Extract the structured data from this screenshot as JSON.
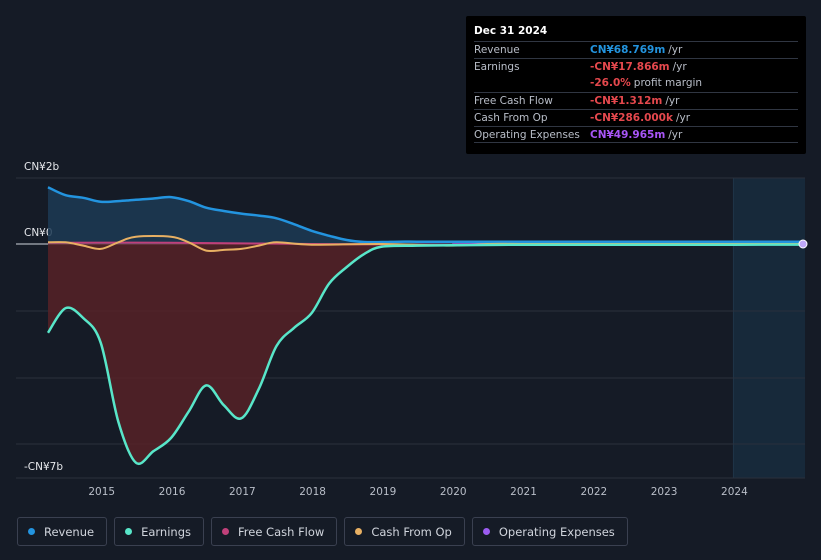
{
  "tooltip": {
    "date": "Dec 31 2024",
    "rows": [
      {
        "label": "Revenue",
        "value": "CN¥68.769m",
        "unit": "/yr",
        "color": "#2394df"
      },
      {
        "label": "Earnings",
        "value": "-CN¥17.866m",
        "unit": "/yr",
        "color": "#e5484d"
      },
      {
        "label": "",
        "value": "-26.0%",
        "unit": "profit margin",
        "color": "#e5484d"
      },
      {
        "label": "Free Cash Flow",
        "value": "-CN¥1.312m",
        "unit": "/yr",
        "color": "#e5484d"
      },
      {
        "label": "Cash From Op",
        "value": "-CN¥286.000k",
        "unit": "/yr",
        "color": "#e5484d"
      },
      {
        "label": "Operating Expenses",
        "value": "CN¥49.965m",
        "unit": "/yr",
        "color": "#a855f7"
      }
    ]
  },
  "legend": [
    {
      "label": "Revenue",
      "color": "#2394df"
    },
    {
      "label": "Earnings",
      "color": "#58e6c9"
    },
    {
      "label": "Free Cash Flow",
      "color": "#c0407a"
    },
    {
      "label": "Cash From Op",
      "color": "#e8b063"
    },
    {
      "label": "Operating Expenses",
      "color": "#9b5cf0"
    }
  ],
  "chart_data": {
    "type": "line",
    "title": "",
    "xlabel": "",
    "ylabel": "",
    "xlim": [
      2014.25,
      2025.0
    ],
    "ylim": [
      -7,
      2
    ],
    "y_tick_labels": [
      {
        "value": 2,
        "label": "CN¥2b"
      },
      {
        "value": 0,
        "label": "CN¥0"
      },
      {
        "value": -7,
        "label": "-CN¥7b"
      }
    ],
    "x_ticks": [
      2015,
      2016,
      2017,
      2018,
      2019,
      2020,
      2021,
      2022,
      2023,
      2024
    ],
    "x_tick_labels": [
      "2015",
      "2016",
      "2017",
      "2018",
      "2019",
      "2020",
      "2021",
      "2022",
      "2023",
      "2024"
    ],
    "highlight_from": 2024.0,
    "series": [
      {
        "name": "Revenue",
        "color": "#2394df",
        "x": [
          2014.25,
          2014.5,
          2014.75,
          2015.0,
          2015.25,
          2015.5,
          2015.75,
          2016.0,
          2016.25,
          2016.5,
          2016.75,
          2017.0,
          2017.25,
          2017.5,
          2017.75,
          2018.0,
          2018.25,
          2018.5,
          2018.75,
          2019.0,
          2019.25,
          2019.5,
          2020.0,
          2021.0,
          2022.0,
          2023.0,
          2024.0,
          2025.0
        ],
        "values": [
          1.72,
          1.48,
          1.4,
          1.28,
          1.3,
          1.34,
          1.38,
          1.42,
          1.3,
          1.1,
          1.0,
          0.92,
          0.86,
          0.78,
          0.6,
          0.4,
          0.25,
          0.12,
          0.06,
          0.06,
          0.07,
          0.07,
          0.07,
          0.07,
          0.07,
          0.07,
          0.07,
          0.069
        ]
      },
      {
        "name": "Earnings",
        "color": "#58e6c9",
        "x": [
          2014.25,
          2014.5,
          2014.75,
          2015.0,
          2015.25,
          2015.5,
          2015.75,
          2016.0,
          2016.25,
          2016.5,
          2016.75,
          2017.0,
          2017.25,
          2017.5,
          2017.75,
          2018.0,
          2018.25,
          2018.5,
          2018.75,
          2019.0,
          2019.5,
          2020.0,
          2021.0,
          2022.0,
          2023.0,
          2024.0,
          2025.0
        ],
        "values": [
          -2.7,
          -1.95,
          -2.25,
          -3.0,
          -5.4,
          -6.65,
          -6.3,
          -5.9,
          -5.1,
          -4.3,
          -4.9,
          -5.3,
          -4.4,
          -3.1,
          -2.55,
          -2.1,
          -1.2,
          -0.7,
          -0.3,
          -0.08,
          -0.05,
          -0.04,
          -0.02,
          -0.02,
          -0.02,
          -0.02,
          -0.018
        ]
      },
      {
        "name": "Free Cash Flow",
        "color": "#c0407a",
        "x": [
          2014.25,
          2016.0,
          2018.0,
          2020.0,
          2021.0,
          2022.0,
          2023.0,
          2024.0,
          2025.0
        ],
        "values": [
          0.04,
          0.04,
          0.0,
          -0.02,
          -0.01,
          -0.01,
          -0.005,
          -0.005,
          -0.0013
        ]
      },
      {
        "name": "Cash From Op",
        "color": "#e8b063",
        "x": [
          2014.25,
          2014.5,
          2014.75,
          2015.0,
          2015.25,
          2015.5,
          2016.0,
          2016.25,
          2016.5,
          2016.75,
          2017.0,
          2017.25,
          2017.5,
          2018.0,
          2019.0,
          2020.0,
          2020.5,
          2021.0,
          2022.0,
          2023.0,
          2024.0,
          2025.0
        ],
        "values": [
          0.05,
          0.05,
          -0.05,
          -0.15,
          0.05,
          0.22,
          0.22,
          0.05,
          -0.2,
          -0.18,
          -0.15,
          -0.05,
          0.05,
          -0.02,
          0.0,
          -0.05,
          0.0,
          0.0,
          0.0,
          0.0,
          0.0,
          -0.0003
        ]
      },
      {
        "name": "Operating Expenses",
        "color": "#9b5cf0",
        "x": [
          2020.0,
          2021.0,
          2022.0,
          2023.0,
          2024.0,
          2025.0
        ],
        "values": [
          0.05,
          0.05,
          0.05,
          0.05,
          0.05,
          0.05
        ]
      }
    ]
  }
}
